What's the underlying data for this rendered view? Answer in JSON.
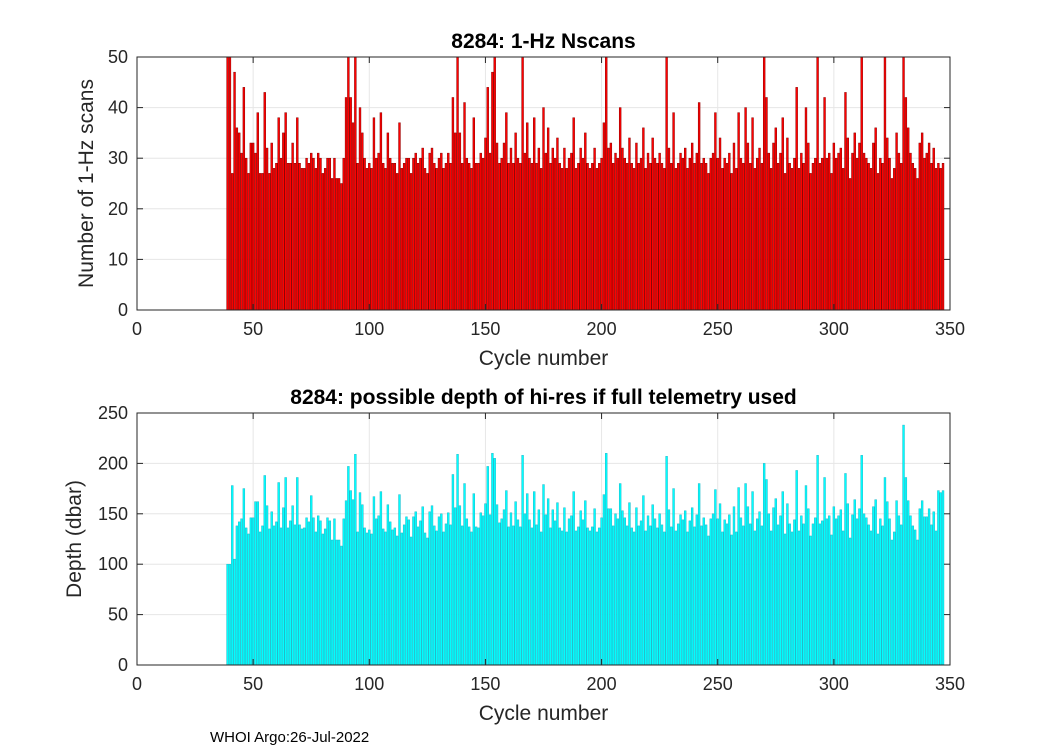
{
  "footer": "WHOI Argo:26-Jul-2022",
  "chart_data": [
    {
      "type": "bar",
      "title": "8284: 1-Hz Nscans",
      "xlabel": "Cycle number",
      "ylabel": "Number of 1-Hz scans",
      "xlim": [
        0,
        350
      ],
      "ylim": [
        0,
        50
      ],
      "xticks": [
        0,
        50,
        100,
        150,
        200,
        250,
        300,
        350
      ],
      "yticks": [
        0,
        10,
        20,
        30,
        40,
        50
      ],
      "grid": true,
      "color": "#ff0000",
      "edge_color": "#8b0000",
      "x_start": 39,
      "values": [
        50,
        50,
        27,
        47,
        36,
        35,
        31,
        44,
        30,
        27,
        33,
        33,
        31,
        39,
        27,
        27,
        43,
        32,
        27,
        33,
        28,
        29,
        38,
        30,
        35,
        39,
        29,
        29,
        33,
        29,
        38,
        29,
        28,
        28,
        30,
        29,
        31,
        30,
        28,
        31,
        30,
        27,
        28,
        30,
        30,
        26,
        30,
        26,
        26,
        25,
        30,
        42,
        50,
        42,
        37,
        50,
        29,
        40,
        35,
        30,
        28,
        29,
        28,
        38,
        30,
        31,
        39,
        29,
        28,
        35,
        30,
        29,
        29,
        27,
        37,
        28,
        29,
        30,
        30,
        27,
        30,
        31,
        29,
        30,
        32,
        28,
        27,
        31,
        32,
        29,
        28,
        30,
        31,
        28,
        29,
        31,
        29,
        42,
        35,
        50,
        35,
        29,
        41,
        30,
        29,
        28,
        38,
        29,
        29,
        31,
        30,
        34,
        44,
        31,
        47,
        50,
        33,
        29,
        30,
        33,
        39,
        29,
        32,
        29,
        35,
        30,
        29,
        50,
        31,
        37,
        30,
        29,
        38,
        29,
        32,
        28,
        40,
        31,
        36,
        29,
        32,
        30,
        34,
        29,
        28,
        32,
        28,
        30,
        31,
        38,
        28,
        29,
        32,
        30,
        35,
        29,
        28,
        29,
        32,
        28,
        29,
        30,
        37,
        50,
        32,
        33,
        29,
        31,
        30,
        40,
        32,
        30,
        29,
        34,
        29,
        28,
        33,
        29,
        30,
        36,
        28,
        31,
        29,
        34,
        30,
        29,
        31,
        29,
        28,
        50,
        32,
        29,
        39,
        28,
        29,
        31,
        30,
        32,
        28,
        30,
        33,
        29,
        31,
        41,
        29,
        30,
        29,
        27,
        30,
        31,
        39,
        30,
        34,
        28,
        30,
        29,
        31,
        27,
        33,
        28,
        39,
        30,
        29,
        40,
        33,
        29,
        38,
        28,
        30,
        32,
        29,
        50,
        42,
        31,
        28,
        33,
        36,
        29,
        31,
        38,
        27,
        34,
        29,
        28,
        30,
        44,
        28,
        31,
        29,
        40,
        33,
        27,
        29,
        30,
        50,
        29,
        30,
        42,
        30,
        31,
        27,
        33,
        30,
        31,
        32,
        28,
        43,
        34,
        26,
        31,
        35,
        30,
        33,
        50,
        31,
        30,
        29,
        28,
        33,
        36,
        27,
        30,
        29,
        50,
        34,
        30,
        26,
        28,
        35,
        31,
        29,
        50,
        42,
        36,
        31,
        29,
        28,
        26,
        33,
        35,
        30,
        31,
        33,
        29,
        32,
        28,
        29,
        28,
        29
      ]
    },
    {
      "type": "bar",
      "title": "8284: possible depth of hi-res if full telemetry used",
      "xlabel": "Cycle number",
      "ylabel": "Depth (dbar)",
      "xlim": [
        0,
        350
      ],
      "ylim": [
        0,
        250
      ],
      "xticks": [
        0,
        50,
        100,
        150,
        200,
        250,
        300,
        350
      ],
      "yticks": [
        0,
        50,
        100,
        150,
        200,
        250
      ],
      "grid": true,
      "color": "#00ffff",
      "edge_color": "#1fb8c8",
      "x_start": 39,
      "values": [
        100,
        100,
        178,
        105,
        138,
        142,
        145,
        175,
        136,
        130,
        146,
        146,
        162,
        162,
        132,
        138,
        188,
        158,
        135,
        152,
        138,
        142,
        181,
        136,
        156,
        186,
        136,
        143,
        158,
        139,
        186,
        139,
        135,
        136,
        146,
        142,
        168,
        146,
        132,
        148,
        143,
        130,
        135,
        146,
        143,
        124,
        145,
        124,
        124,
        118,
        145,
        163,
        197,
        173,
        164,
        209,
        132,
        171,
        159,
        136,
        131,
        134,
        130,
        167,
        145,
        148,
        172,
        135,
        132,
        159,
        142,
        134,
        136,
        128,
        169,
        131,
        139,
        147,
        144,
        127,
        147,
        152,
        137,
        143,
        157,
        131,
        126,
        152,
        158,
        138,
        133,
        147,
        150,
        132,
        140,
        151,
        139,
        189,
        156,
        209,
        158,
        138,
        180,
        145,
        137,
        132,
        170,
        137,
        136,
        151,
        148,
        160,
        197,
        149,
        210,
        205,
        159,
        141,
        145,
        154,
        173,
        137,
        151,
        138,
        162,
        144,
        137,
        208,
        150,
        170,
        144,
        136,
        172,
        139,
        154,
        132,
        179,
        149,
        165,
        136,
        154,
        143,
        161,
        136,
        133,
        156,
        132,
        145,
        148,
        172,
        133,
        137,
        153,
        144,
        163,
        136,
        133,
        137,
        155,
        132,
        136,
        146,
        169,
        210,
        155,
        155,
        138,
        150,
        145,
        180,
        153,
        146,
        138,
        161,
        136,
        132,
        156,
        138,
        143,
        168,
        133,
        148,
        138,
        159,
        145,
        136,
        150,
        139,
        132,
        207,
        154,
        137,
        175,
        133,
        140,
        149,
        144,
        153,
        132,
        143,
        156,
        137,
        149,
        180,
        138,
        146,
        139,
        128,
        145,
        150,
        174,
        145,
        160,
        132,
        144,
        140,
        149,
        129,
        157,
        132,
        176,
        146,
        138,
        180,
        157,
        140,
        172,
        133,
        145,
        152,
        138,
        200,
        184,
        150,
        133,
        156,
        165,
        139,
        148,
        172,
        130,
        160,
        140,
        132,
        144,
        193,
        133,
        148,
        140,
        178,
        155,
        128,
        140,
        146,
        208,
        140,
        143,
        186,
        145,
        148,
        129,
        157,
        145,
        148,
        154,
        133,
        190,
        160,
        126,
        149,
        164,
        145,
        155,
        208,
        150,
        146,
        139,
        133,
        157,
        164,
        130,
        145,
        138,
        186,
        162,
        145,
        124,
        132,
        163,
        148,
        139,
        238,
        186,
        163,
        148,
        138,
        134,
        124,
        155,
        163,
        147,
        147,
        155,
        139,
        152,
        133,
        173,
        171,
        173
      ]
    }
  ]
}
